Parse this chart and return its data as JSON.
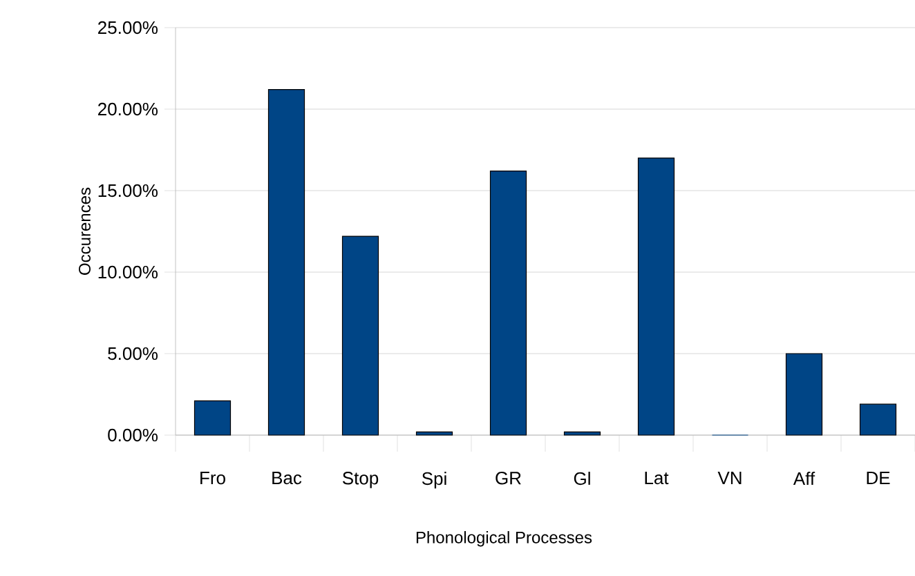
{
  "chart_data": {
    "type": "bar",
    "xlabel": "Phonological Processes",
    "ylabel": "Occurences",
    "categories": [
      "Fro",
      "Bac",
      "Stop",
      "Spi",
      "GR",
      "Gl",
      "Lat",
      "VN",
      "Aff",
      "DE"
    ],
    "values": [
      2.1,
      21.2,
      12.2,
      0.2,
      16.2,
      0.2,
      17.0,
      0,
      5.0,
      1.9
    ],
    "color": "#004586",
    "ylim": [
      0,
      25
    ],
    "yticks": [
      {
        "value": 0,
        "label": "0.00%"
      },
      {
        "value": 5,
        "label": "5.00%"
      },
      {
        "value": 10,
        "label": "10.00%"
      },
      {
        "value": 15,
        "label": "15.00%"
      },
      {
        "value": 20,
        "label": "20.00%"
      },
      {
        "value": 25,
        "label": "25.00%"
      }
    ],
    "grid": "y"
  }
}
